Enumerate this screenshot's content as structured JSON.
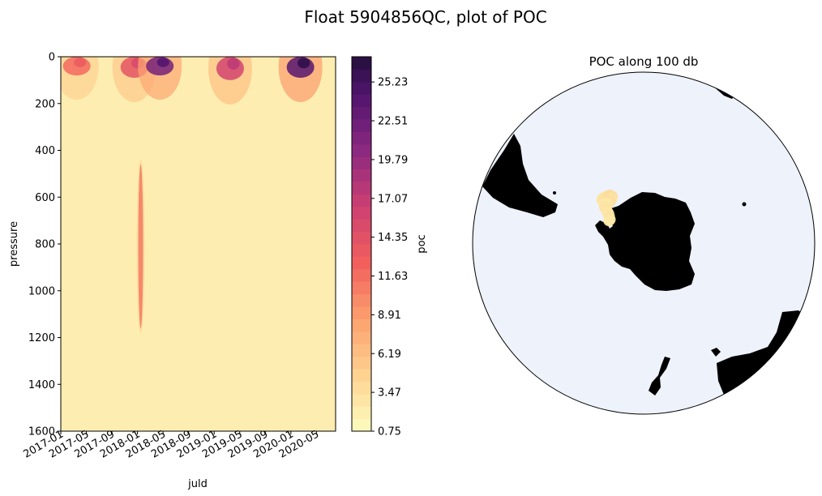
{
  "figure": {
    "suptitle": "Float 5904856QC, plot of POC"
  },
  "chart_data": [
    {
      "type": "heatmap",
      "xlabel": "juld",
      "ylabel": "pressure",
      "x_ticks": [
        "2017-01",
        "2017-05",
        "2017-09",
        "2018-01",
        "2018-05",
        "2018-09",
        "2019-01",
        "2019-05",
        "2019-09",
        "2020-01",
        "2020-05"
      ],
      "x_range_months": [
        0,
        43
      ],
      "ylim": [
        1600,
        0
      ],
      "y_ticks": [
        0,
        200,
        400,
        600,
        800,
        1000,
        1200,
        1400,
        1600
      ],
      "colorbar": {
        "label": "poc",
        "ticks": [
          25.23,
          22.51,
          19.79,
          17.07,
          14.35,
          11.63,
          8.91,
          6.19,
          3.47,
          0.75
        ],
        "ticks_label": [
          "25.23",
          "22.51",
          "19.79",
          "17.07",
          "14.35",
          "11.63",
          "8.91",
          "6.19",
          "3.47",
          "0.75"
        ],
        "range": [
          0.75,
          27.0
        ],
        "colormap": "magma_r"
      },
      "features": [
        {
          "desc": "surface bloom",
          "month": 2.5,
          "p_top": 0,
          "p_bottom": 80,
          "value": 12
        },
        {
          "desc": "surface bloom",
          "month": 11.5,
          "p_top": 0,
          "p_bottom": 90,
          "value": 14
        },
        {
          "desc": "surface bloom",
          "month": 15.5,
          "p_top": 0,
          "p_bottom": 80,
          "value": 22
        },
        {
          "desc": "surface bloom",
          "month": 26.5,
          "p_top": 0,
          "p_bottom": 100,
          "value": 16
        },
        {
          "desc": "surface bloom",
          "month": 37.5,
          "p_top": 0,
          "p_bottom": 90,
          "value": 24
        },
        {
          "desc": "deep plume",
          "month": 12.5,
          "p_top": 460,
          "p_bottom": 1160,
          "value": 11
        }
      ]
    },
    {
      "type": "scatter",
      "title": "POC along 100 db",
      "projection": "south-polar-stereographic",
      "ocean_color": "#edf2fb",
      "land_color": "#000000",
      "marker_color": "#fbd49c",
      "value_range": [
        0.75,
        3.5
      ],
      "points": [
        {
          "lon": -44,
          "lat": -51.5,
          "poc": 1.4
        },
        {
          "lon": -43,
          "lat": -51.0,
          "poc": 1.6
        },
        {
          "lon": -41,
          "lat": -51.2,
          "poc": 1.8
        },
        {
          "lon": -38,
          "lat": -51.6,
          "poc": 2.1
        },
        {
          "lon": -35,
          "lat": -52.3,
          "poc": 2.4
        },
        {
          "lon": -34,
          "lat": -53.5,
          "poc": 2.0
        },
        {
          "lon": -36,
          "lat": -54.6,
          "poc": 1.7
        },
        {
          "lon": -39,
          "lat": -55.3,
          "poc": 2.2
        },
        {
          "lon": -42,
          "lat": -55.0,
          "poc": 1.5
        },
        {
          "lon": -45,
          "lat": -54.0,
          "poc": 1.3
        },
        {
          "lon": -47,
          "lat": -55.2,
          "poc": 1.6
        },
        {
          "lon": -48,
          "lat": -57.0,
          "poc": 1.8
        },
        {
          "lon": -49,
          "lat": -58.5,
          "poc": 1.5
        },
        {
          "lon": -50,
          "lat": -60.0,
          "poc": 1.4
        },
        {
          "lon": -52,
          "lat": -61.3,
          "poc": 1.7
        },
        {
          "lon": -54,
          "lat": -62.2,
          "poc": 1.9
        },
        {
          "lon": -55,
          "lat": -63.0,
          "poc": 1.6
        },
        {
          "lon": -57,
          "lat": -62.8,
          "poc": 1.3
        }
      ]
    }
  ]
}
